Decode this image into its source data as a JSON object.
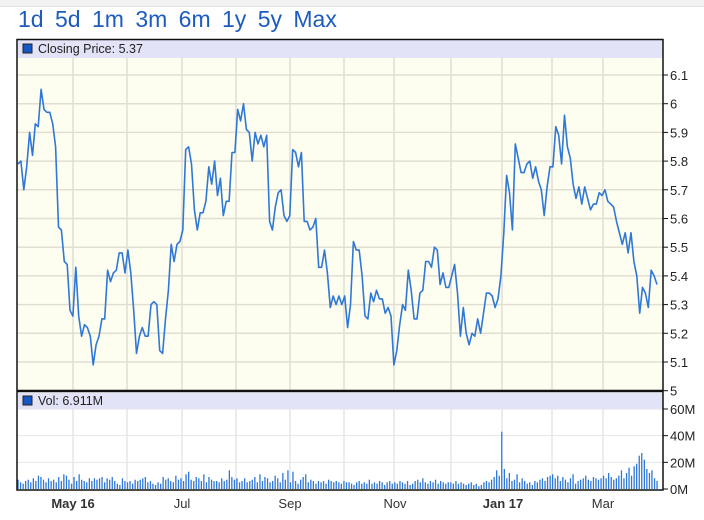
{
  "range_links": [
    "1d",
    "5d",
    "1m",
    "3m",
    "6m",
    "1y",
    "5y",
    "Max"
  ],
  "colors": {
    "line": "#2f78d6",
    "bar": "#2f78d6",
    "legend_square": "#1656c9",
    "price_bg": "#fdfdf0",
    "band": "#e3e3f7",
    "grid": "#e2dfd2"
  },
  "chart_data": [
    {
      "type": "line",
      "title": "Closing Price",
      "legend": "Closing Price: 5.37",
      "legend_placement": "top-left",
      "ylim": [
        5.0,
        6.1
      ],
      "y_ticks": [
        "5",
        "5.1",
        "5.2",
        "5.3",
        "5.4",
        "5.5",
        "5.6",
        "5.7",
        "5.8",
        "5.9",
        "6",
        "6.1"
      ],
      "x_ticks": [
        {
          "label": "May 16",
          "bold": true
        },
        {
          "label": "Jul",
          "bold": false
        },
        {
          "label": "Sep",
          "bold": false
        },
        {
          "label": "Nov",
          "bold": false
        },
        {
          "label": "Jan 17",
          "bold": true
        },
        {
          "label": "Mar",
          "bold": false
        }
      ],
      "grid": true,
      "values": [
        5.79,
        5.8,
        5.7,
        5.78,
        5.9,
        5.82,
        5.93,
        5.92,
        6.05,
        5.98,
        5.97,
        5.97,
        5.93,
        5.85,
        5.57,
        5.56,
        5.45,
        5.44,
        5.28,
        5.26,
        5.43,
        5.26,
        5.19,
        5.23,
        5.22,
        5.19,
        5.09,
        5.16,
        5.19,
        5.25,
        5.25,
        5.42,
        5.38,
        5.41,
        5.42,
        5.48,
        5.48,
        5.41,
        5.49,
        5.41,
        5.28,
        5.13,
        5.19,
        5.22,
        5.19,
        5.19,
        5.3,
        5.31,
        5.3,
        5.14,
        5.13,
        5.25,
        5.35,
        5.51,
        5.45,
        5.51,
        5.52,
        5.56,
        5.84,
        5.85,
        5.79,
        5.63,
        5.56,
        5.62,
        5.62,
        5.66,
        5.78,
        5.72,
        5.8,
        5.68,
        5.74,
        5.61,
        5.66,
        5.66,
        5.83,
        5.83,
        5.98,
        5.94,
        6.0,
        5.91,
        5.9,
        5.8,
        5.9,
        5.86,
        5.89,
        5.85,
        5.89,
        5.59,
        5.56,
        5.64,
        5.69,
        5.7,
        5.61,
        5.59,
        5.61,
        5.84,
        5.83,
        5.78,
        5.83,
        5.59,
        5.59,
        5.56,
        5.57,
        5.6,
        5.43,
        5.43,
        5.49,
        5.41,
        5.29,
        5.33,
        5.3,
        5.33,
        5.3,
        5.33,
        5.22,
        5.3,
        5.52,
        5.49,
        5.49,
        5.4,
        5.26,
        5.25,
        5.34,
        5.31,
        5.35,
        5.32,
        5.32,
        5.27,
        5.29,
        5.26,
        5.09,
        5.14,
        5.23,
        5.3,
        5.28,
        5.42,
        5.35,
        5.25,
        5.25,
        5.34,
        5.35,
        5.45,
        5.45,
        5.43,
        5.5,
        5.49,
        5.37,
        5.41,
        5.36,
        5.36,
        5.4,
        5.44,
        5.34,
        5.19,
        5.29,
        5.2,
        5.16,
        5.2,
        5.19,
        5.25,
        5.2,
        5.27,
        5.34,
        5.34,
        5.33,
        5.29,
        5.32,
        5.4,
        5.55,
        5.75,
        5.69,
        5.56,
        5.86,
        5.81,
        5.76,
        5.76,
        5.79,
        5.8,
        5.74,
        5.78,
        5.73,
        5.7,
        5.61,
        5.71,
        5.78,
        5.78,
        5.92,
        5.89,
        5.79,
        5.96,
        5.85,
        5.81,
        5.72,
        5.67,
        5.71,
        5.65,
        5.71,
        5.67,
        5.63,
        5.65,
        5.65,
        5.69,
        5.68,
        5.7,
        5.66,
        5.65,
        5.64,
        5.59,
        5.55,
        5.51,
        5.55,
        5.48,
        5.55,
        5.45,
        5.4,
        5.27,
        5.36,
        5.34,
        5.29,
        5.42,
        5.4,
        5.37
      ]
    },
    {
      "type": "bar",
      "title": "Volume",
      "legend": "Vol: 6.911M",
      "legend_placement": "top-left",
      "ylim": [
        0,
        60
      ],
      "y_unit": "M",
      "y_ticks": [
        "0M",
        "20M",
        "40M",
        "60M"
      ],
      "grid": true,
      "values": [
        7,
        5,
        4,
        6,
        7,
        5,
        8,
        6,
        10,
        9,
        7,
        5,
        8,
        6,
        7,
        5,
        9,
        6,
        11,
        10,
        7,
        4,
        9,
        6,
        11,
        7,
        6,
        5,
        8,
        6,
        8,
        7,
        8,
        9,
        5,
        8,
        7,
        9,
        6,
        4,
        3,
        8,
        6,
        5,
        6,
        4,
        7,
        6,
        7,
        8,
        9,
        5,
        6,
        4,
        3,
        5,
        4,
        9,
        7,
        8,
        6,
        5,
        10,
        7,
        8,
        6,
        11,
        13,
        7,
        6,
        9,
        8,
        6,
        11,
        5,
        9,
        7,
        6,
        6,
        5,
        8,
        6,
        7,
        14,
        9,
        7,
        8,
        5,
        6,
        8,
        5,
        6,
        7,
        9,
        5,
        11,
        6,
        9,
        8,
        5,
        6,
        10,
        8,
        5,
        12,
        7,
        14,
        5,
        13,
        6,
        4,
        7,
        9,
        11,
        5,
        7,
        6,
        4,
        6,
        5,
        6,
        4,
        7,
        6,
        5,
        6,
        5,
        4,
        6,
        5,
        5,
        4,
        3,
        5,
        6,
        4,
        5,
        4,
        7,
        4,
        5,
        4,
        6,
        5,
        3,
        5,
        6,
        4,
        5,
        4,
        6,
        5,
        4,
        6,
        3,
        4,
        6,
        7,
        5,
        8,
        5,
        4,
        6,
        5,
        7,
        4,
        6,
        5,
        4,
        5,
        5,
        4,
        6,
        4,
        5,
        4,
        3,
        4,
        5,
        3,
        4,
        2,
        3,
        5,
        6,
        5,
        7,
        9,
        14,
        10,
        43,
        15,
        8,
        12,
        6,
        7,
        11,
        5,
        8,
        6,
        4,
        5,
        3,
        6,
        5,
        7,
        8,
        6,
        9,
        10,
        11,
        8,
        10,
        6,
        9,
        7,
        5,
        8,
        11,
        4,
        6,
        7,
        8,
        10,
        7,
        6,
        9,
        8,
        7,
        8,
        10,
        8,
        12,
        9,
        7,
        8,
        10,
        14,
        8,
        12,
        16,
        10,
        17,
        19,
        25,
        27,
        22,
        15,
        12,
        14,
        8,
        6
      ]
    }
  ]
}
